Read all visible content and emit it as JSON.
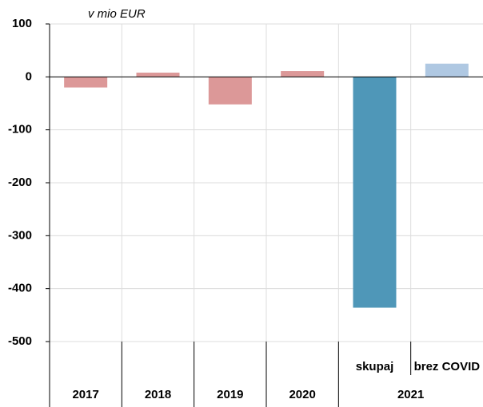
{
  "chart_data": {
    "type": "bar",
    "ylabel": "v mio EUR",
    "categories": [
      null,
      null,
      null,
      null,
      "skupaj",
      "brez COVID"
    ],
    "groups": [
      {
        "label": "2017",
        "size": 1
      },
      {
        "label": "2018",
        "size": 1
      },
      {
        "label": "2019",
        "size": 1
      },
      {
        "label": "2020",
        "size": 1
      },
      {
        "label": "2021",
        "size": 2
      }
    ],
    "values": [
      -20,
      8,
      -52,
      11,
      -436,
      25
    ],
    "colors": [
      "#dc9898",
      "#dc9898",
      "#dc9898",
      "#dc9898",
      "#4f97b8",
      "#afc8e2"
    ],
    "ylim": [
      -500,
      100
    ],
    "yticks": [
      -500,
      -400,
      -300,
      -200,
      -100,
      0,
      100
    ],
    "grid": true
  }
}
